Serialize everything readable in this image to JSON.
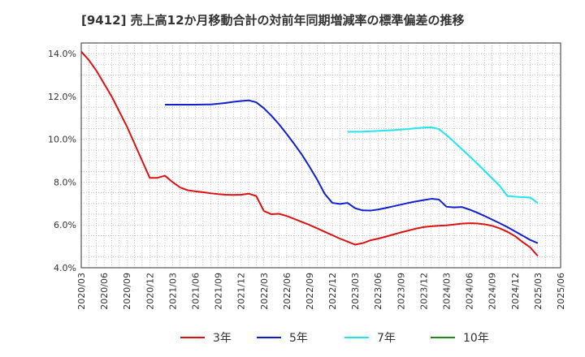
{
  "chart_data": {
    "type": "line",
    "title": "[9412]  売上高12か月移動合計の対前年同期増減率の標準偏差の推移",
    "xlabel": "",
    "ylabel": "",
    "ylim": [
      4.0,
      14.5
    ],
    "yticks": [
      4.0,
      6.0,
      8.0,
      10.0,
      12.0,
      14.0
    ],
    "ytick_labels": [
      "4.0%",
      "6.0%",
      "8.0%",
      "10.0%",
      "12.0%",
      "14.0%"
    ],
    "xticks": [
      "2020/03",
      "2020/06",
      "2020/09",
      "2020/12",
      "2021/03",
      "2021/06",
      "2021/09",
      "2021/12",
      "2022/03",
      "2022/06",
      "2022/09",
      "2022/12",
      "2023/03",
      "2023/06",
      "2023/09",
      "2023/12",
      "2024/03",
      "2024/06",
      "2024/09",
      "2024/12",
      "2025/03",
      "2025/06"
    ],
    "grid": true,
    "legend_position": "bottom",
    "series": [
      {
        "name": "3年",
        "color": "#dd1111",
        "points": [
          [
            "2020/03",
            14.1
          ],
          [
            "2020/04",
            13.7
          ],
          [
            "2020/05",
            13.2
          ],
          [
            "2020/06",
            12.6
          ],
          [
            "2020/07",
            12.0
          ],
          [
            "2020/08",
            11.3
          ],
          [
            "2020/09",
            10.6
          ],
          [
            "2020/10",
            9.8
          ],
          [
            "2020/11",
            9.0
          ],
          [
            "2020/12",
            8.2
          ],
          [
            "2021/01",
            8.2
          ],
          [
            "2021/02",
            8.3
          ],
          [
            "2021/03",
            8.0
          ],
          [
            "2021/04",
            7.75
          ],
          [
            "2021/05",
            7.62
          ],
          [
            "2021/06",
            7.57
          ],
          [
            "2021/07",
            7.53
          ],
          [
            "2021/08",
            7.48
          ],
          [
            "2021/09",
            7.44
          ],
          [
            "2021/10",
            7.41
          ],
          [
            "2021/11",
            7.4
          ],
          [
            "2021/12",
            7.41
          ],
          [
            "2022/01",
            7.46
          ],
          [
            "2022/02",
            7.35
          ],
          [
            "2022/03",
            6.65
          ],
          [
            "2022/04",
            6.5
          ],
          [
            "2022/05",
            6.52
          ],
          [
            "2022/06",
            6.42
          ],
          [
            "2022/07",
            6.28
          ],
          [
            "2022/08",
            6.14
          ],
          [
            "2022/09",
            6.0
          ],
          [
            "2022/10",
            5.84
          ],
          [
            "2022/11",
            5.68
          ],
          [
            "2022/12",
            5.52
          ],
          [
            "2023/01",
            5.36
          ],
          [
            "2023/02",
            5.22
          ],
          [
            "2023/03",
            5.08
          ],
          [
            "2023/04",
            5.15
          ],
          [
            "2023/05",
            5.28
          ],
          [
            "2023/06",
            5.36
          ],
          [
            "2023/07",
            5.45
          ],
          [
            "2023/08",
            5.55
          ],
          [
            "2023/09",
            5.65
          ],
          [
            "2023/10",
            5.74
          ],
          [
            "2023/11",
            5.83
          ],
          [
            "2023/12",
            5.9
          ],
          [
            "2024/01",
            5.94
          ],
          [
            "2024/02",
            5.96
          ],
          [
            "2024/03",
            5.98
          ],
          [
            "2024/04",
            6.02
          ],
          [
            "2024/05",
            6.06
          ],
          [
            "2024/06",
            6.08
          ],
          [
            "2024/07",
            6.07
          ],
          [
            "2024/08",
            6.03
          ],
          [
            "2024/09",
            5.96
          ],
          [
            "2024/10",
            5.84
          ],
          [
            "2024/11",
            5.68
          ],
          [
            "2024/12",
            5.48
          ],
          [
            "2025/01",
            5.2
          ],
          [
            "2025/02",
            4.95
          ],
          [
            "2025/03",
            4.55
          ]
        ]
      },
      {
        "name": "5年",
        "color": "#1020cc",
        "points": [
          [
            "2021/02",
            11.62
          ],
          [
            "2021/04",
            11.62
          ],
          [
            "2021/06",
            11.62
          ],
          [
            "2021/08",
            11.63
          ],
          [
            "2021/09",
            11.66
          ],
          [
            "2021/10",
            11.7
          ],
          [
            "2021/11",
            11.75
          ],
          [
            "2021/12",
            11.79
          ],
          [
            "2022/01",
            11.82
          ],
          [
            "2022/02",
            11.73
          ],
          [
            "2022/03",
            11.45
          ],
          [
            "2022/04",
            11.1
          ],
          [
            "2022/05",
            10.7
          ],
          [
            "2022/06",
            10.25
          ],
          [
            "2022/07",
            9.78
          ],
          [
            "2022/08",
            9.28
          ],
          [
            "2022/09",
            8.72
          ],
          [
            "2022/10",
            8.12
          ],
          [
            "2022/11",
            7.45
          ],
          [
            "2022/12",
            7.03
          ],
          [
            "2023/01",
            6.98
          ],
          [
            "2023/02",
            7.03
          ],
          [
            "2023/03",
            6.78
          ],
          [
            "2023/04",
            6.68
          ],
          [
            "2023/05",
            6.67
          ],
          [
            "2023/06",
            6.72
          ],
          [
            "2023/07",
            6.79
          ],
          [
            "2023/08",
            6.87
          ],
          [
            "2023/09",
            6.95
          ],
          [
            "2023/10",
            7.03
          ],
          [
            "2023/11",
            7.1
          ],
          [
            "2023/12",
            7.16
          ],
          [
            "2024/01",
            7.22
          ],
          [
            "2024/02",
            7.19
          ],
          [
            "2024/03",
            6.85
          ],
          [
            "2024/04",
            6.82
          ],
          [
            "2024/05",
            6.84
          ],
          [
            "2024/06",
            6.72
          ],
          [
            "2024/07",
            6.58
          ],
          [
            "2024/08",
            6.42
          ],
          [
            "2024/09",
            6.25
          ],
          [
            "2024/10",
            6.08
          ],
          [
            "2024/11",
            5.9
          ],
          [
            "2024/12",
            5.7
          ],
          [
            "2025/01",
            5.5
          ],
          [
            "2025/02",
            5.3
          ],
          [
            "2025/03",
            5.15
          ]
        ]
      },
      {
        "name": "7年",
        "color": "#22e5f0",
        "points": [
          [
            "2023/02",
            10.35
          ],
          [
            "2023/04",
            10.36
          ],
          [
            "2023/06",
            10.39
          ],
          [
            "2023/08",
            10.43
          ],
          [
            "2023/10",
            10.48
          ],
          [
            "2023/11",
            10.52
          ],
          [
            "2023/12",
            10.55
          ],
          [
            "2024/01",
            10.56
          ],
          [
            "2024/02",
            10.48
          ],
          [
            "2024/03",
            10.2
          ],
          [
            "2024/04",
            9.88
          ],
          [
            "2024/05",
            9.55
          ],
          [
            "2024/06",
            9.22
          ],
          [
            "2024/07",
            8.88
          ],
          [
            "2024/08",
            8.53
          ],
          [
            "2024/09",
            8.18
          ],
          [
            "2024/10",
            7.82
          ],
          [
            "2024/11",
            7.35
          ],
          [
            "2024/12",
            7.32
          ],
          [
            "2025/01",
            7.3
          ],
          [
            "2025/02",
            7.28
          ],
          [
            "2025/03",
            7.02
          ]
        ]
      },
      {
        "name": "10年",
        "color": "#228822",
        "points": []
      }
    ]
  }
}
